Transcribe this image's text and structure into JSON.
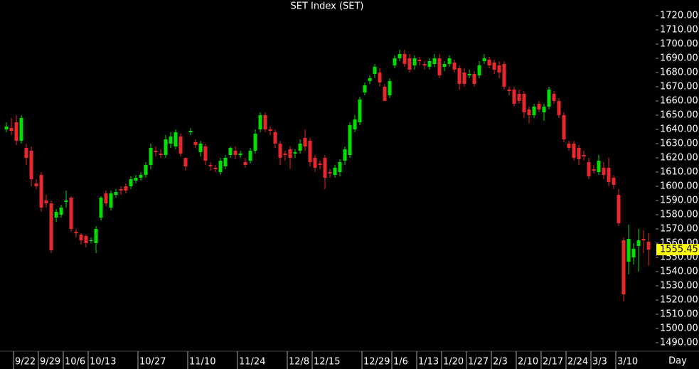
{
  "chart_data": {
    "type": "candlestick",
    "title": "SET Index (SET)",
    "x_label": "Day",
    "up_color": "#00e000",
    "down_color": "#e8282b",
    "last_color": "#ffff00",
    "ylim": [
      1485,
      1731
    ],
    "yticks": [
      {
        "value": 1490,
        "label": "1490.00"
      },
      {
        "value": 1500,
        "label": "1500.00"
      },
      {
        "value": 1510,
        "label": "1510.00"
      },
      {
        "value": 1520,
        "label": "1520.00"
      },
      {
        "value": 1530,
        "label": "1530.00"
      },
      {
        "value": 1540,
        "label": "1540.00"
      },
      {
        "value": 1550,
        "label": "1550.00"
      },
      {
        "value": 1560,
        "label": "1560.00"
      },
      {
        "value": 1570,
        "label": "1570.00"
      },
      {
        "value": 1580,
        "label": "1580.00"
      },
      {
        "value": 1590,
        "label": "1590.00"
      },
      {
        "value": 1600,
        "label": "1600.00"
      },
      {
        "value": 1610,
        "label": "1610.00"
      },
      {
        "value": 1620,
        "label": "1620.00"
      },
      {
        "value": 1630,
        "label": "1630.00"
      },
      {
        "value": 1640,
        "label": "1640.00"
      },
      {
        "value": 1650,
        "label": "1650.00"
      },
      {
        "value": 1660,
        "label": "1660.00"
      },
      {
        "value": 1670,
        "label": "1670.00"
      },
      {
        "value": 1680,
        "label": "1680.00"
      },
      {
        "value": 1690,
        "label": "1690.00"
      },
      {
        "value": 1700,
        "label": "1700.00"
      },
      {
        "value": 1710,
        "label": "1710.00"
      },
      {
        "value": 1720,
        "label": "1720.00"
      }
    ],
    "categories": [
      null,
      null,
      "9/22",
      null,
      null,
      null,
      null,
      "9/29",
      null,
      null,
      null,
      null,
      "10/6",
      null,
      null,
      null,
      null,
      "10/13",
      null,
      null,
      null,
      null,
      null,
      null,
      null,
      null,
      null,
      "10/27",
      null,
      null,
      null,
      null,
      null,
      null,
      null,
      null,
      null,
      "11/10",
      null,
      null,
      null,
      null,
      null,
      null,
      null,
      null,
      null,
      "11/24",
      null,
      null,
      null,
      null,
      null,
      null,
      null,
      null,
      null,
      "12/8",
      null,
      null,
      null,
      null,
      "12/15",
      null,
      null,
      null,
      null,
      null,
      null,
      null,
      null,
      null,
      "12/29",
      null,
      null,
      null,
      null,
      null,
      "1/6",
      null,
      null,
      null,
      null,
      "1/13",
      null,
      null,
      null,
      null,
      "1/20",
      null,
      null,
      null,
      null,
      "1/27",
      null,
      null,
      null,
      null,
      "2/3",
      null,
      null,
      null,
      null,
      "2/10",
      null,
      null,
      null,
      null,
      "2/17",
      null,
      null,
      null,
      null,
      "2/24",
      null,
      null,
      null,
      null,
      "3/3",
      null,
      null,
      null,
      null,
      "3/10",
      null,
      null,
      null,
      null,
      null,
      null
    ],
    "open": [
      1640,
      1641,
      1645,
      1632,
      1627,
      1625,
      1602,
      1608,
      1590,
      1588,
      1578,
      1580,
      1589,
      1592,
      1568,
      1566,
      1565,
      1562,
      1560,
      1578,
      1595,
      1585,
      1594,
      1598,
      1600,
      1600,
      1604,
      1606,
      1608,
      1615,
      1625,
      1623,
      1622,
      1630,
      1628,
      1635,
      1620,
      1638,
      1631,
      1624,
      1628,
      1615,
      1613,
      1610,
      1614,
      1622,
      1625,
      1622,
      1617,
      1618,
      1625,
      1640,
      1650,
      1640,
      1638,
      1630,
      1623,
      1626,
      1623,
      1625,
      1634,
      1632,
      1620,
      1616,
      1620,
      1610,
      1608,
      1610,
      1618,
      1622,
      1640,
      1645,
      1666,
      1674,
      1679,
      1680,
      1670,
      1664,
      1685,
      1690,
      1693,
      1690,
      1685,
      1689,
      1686,
      1684,
      1686,
      1690,
      1684,
      1686,
      1687,
      1683,
      1680,
      1678,
      1679,
      1678,
      1688,
      1689,
      1687,
      1685,
      1686,
      1668,
      1668,
      1665,
      1665,
      1654,
      1650,
      1658,
      1652,
      1656,
      1665,
      1660,
      1650,
      1630,
      1630,
      1627,
      1622,
      1617,
      1612,
      1610,
      1613,
      1613,
      1606,
      1594,
      1562,
      1547,
      1550,
      1558,
      1563,
      1561
    ],
    "high": [
      1645,
      1648,
      1650,
      1650,
      1630,
      1628,
      1605,
      1610,
      1594,
      1590,
      1584,
      1587,
      1597,
      1593,
      1570,
      1567,
      1566,
      1564,
      1572,
      1593,
      1597,
      1597,
      1598,
      1600,
      1602,
      1607,
      1608,
      1610,
      1617,
      1630,
      1628,
      1626,
      1636,
      1638,
      1640,
      1637,
      1620,
      1641,
      1633,
      1632,
      1630,
      1617,
      1615,
      1620,
      1622,
      1628,
      1628,
      1625,
      1620,
      1627,
      1640,
      1652,
      1652,
      1642,
      1640,
      1632,
      1625,
      1628,
      1626,
      1633,
      1640,
      1634,
      1622,
      1618,
      1622,
      1612,
      1615,
      1619,
      1628,
      1645,
      1650,
      1663,
      1673,
      1678,
      1686,
      1683,
      1672,
      1676,
      1692,
      1696,
      1696,
      1693,
      1692,
      1691,
      1688,
      1690,
      1693,
      1693,
      1688,
      1692,
      1689,
      1685,
      1683,
      1682,
      1681,
      1688,
      1693,
      1691,
      1689,
      1688,
      1688,
      1670,
      1670,
      1668,
      1667,
      1656,
      1658,
      1660,
      1658,
      1670,
      1667,
      1662,
      1652,
      1632,
      1632,
      1629,
      1625,
      1620,
      1615,
      1622,
      1617,
      1620,
      1608,
      1598,
      1564,
      1573,
      1560,
      1570,
      1569,
      1567
    ],
    "low": [
      1638,
      1636,
      1629,
      1630,
      1615,
      1600,
      1598,
      1582,
      1585,
      1553,
      1575,
      1578,
      1585,
      1568,
      1564,
      1559,
      1557,
      1560,
      1553,
      1576,
      1586,
      1583,
      1592,
      1594,
      1595,
      1598,
      1602,
      1604,
      1606,
      1612,
      1621,
      1620,
      1620,
      1627,
      1626,
      1621,
      1611,
      1636,
      1627,
      1621,
      1615,
      1611,
      1610,
      1608,
      1612,
      1620,
      1619,
      1620,
      1613,
      1616,
      1623,
      1638,
      1638,
      1636,
      1627,
      1615,
      1618,
      1612,
      1620,
      1623,
      1625,
      1614,
      1610,
      1612,
      1598,
      1606,
      1606,
      1607,
      1615,
      1620,
      1638,
      1643,
      1664,
      1672,
      1676,
      1670,
      1660,
      1662,
      1683,
      1688,
      1684,
      1680,
      1682,
      1685,
      1682,
      1682,
      1684,
      1676,
      1681,
      1684,
      1680,
      1668,
      1670,
      1676,
      1670,
      1676,
      1686,
      1683,
      1679,
      1676,
      1668,
      1664,
      1656,
      1658,
      1648,
      1644,
      1648,
      1652,
      1646,
      1654,
      1658,
      1648,
      1631,
      1625,
      1618,
      1615,
      1618,
      1605,
      1609,
      1608,
      1605,
      1600,
      1598,
      1572,
      1519,
      1538,
      1545,
      1540,
      1553,
      1544
    ],
    "close": [
      1642,
      1639,
      1632,
      1648,
      1620,
      1605,
      1600,
      1585,
      1588,
      1555,
      1582,
      1585,
      1590,
      1570,
      1567,
      1562,
      1560,
      1562,
      1570,
      1592,
      1588,
      1595,
      1596,
      1597,
      1597,
      1605,
      1606,
      1608,
      1615,
      1627,
      1624,
      1622,
      1633,
      1635,
      1638,
      1623,
      1614,
      1639,
      1629,
      1630,
      1618,
      1614,
      1612,
      1618,
      1620,
      1627,
      1622,
      1623,
      1615,
      1625,
      1637,
      1650,
      1640,
      1639,
      1630,
      1620,
      1622,
      1620,
      1624,
      1630,
      1628,
      1617,
      1613,
      1615,
      1606,
      1609,
      1613,
      1617,
      1626,
      1643,
      1647,
      1661,
      1671,
      1676,
      1684,
      1673,
      1660,
      1674,
      1690,
      1693,
      1686,
      1682,
      1690,
      1688,
      1685,
      1688,
      1690,
      1678,
      1686,
      1690,
      1682,
      1672,
      1672,
      1679,
      1672,
      1685,
      1690,
      1685,
      1682,
      1680,
      1670,
      1667,
      1658,
      1660,
      1652,
      1650,
      1656,
      1654,
      1656,
      1668,
      1660,
      1650,
      1633,
      1627,
      1620,
      1619,
      1621,
      1607,
      1611,
      1618,
      1608,
      1603,
      1601,
      1574,
      1524,
      1563,
      1556,
      1562,
      1562,
      1555.45
    ]
  }
}
